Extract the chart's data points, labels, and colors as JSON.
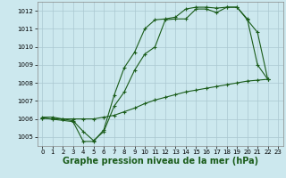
{
  "bg_color": "#cce8ee",
  "grid_color": "#aac8d0",
  "line_color": "#1a5c1a",
  "xlabel": "Graphe pression niveau de la mer (hPa)",
  "xlabel_fontsize": 7.0,
  "xlim": [
    -0.5,
    23.5
  ],
  "ylim": [
    1004.5,
    1012.5
  ],
  "yticks": [
    1005,
    1006,
    1007,
    1008,
    1009,
    1010,
    1011,
    1012
  ],
  "xticks": [
    0,
    1,
    2,
    3,
    4,
    5,
    6,
    7,
    8,
    9,
    10,
    11,
    12,
    13,
    14,
    15,
    16,
    17,
    18,
    19,
    20,
    21,
    22,
    23
  ],
  "line1_x": [
    0,
    1,
    2,
    3,
    4,
    5,
    6,
    7,
    8,
    9,
    10,
    11,
    12,
    13,
    14,
    15,
    16,
    17,
    18,
    19,
    20,
    21,
    22
  ],
  "line1_y": [
    1006.1,
    1006.1,
    1006.0,
    1005.9,
    1005.3,
    1004.8,
    1005.3,
    1006.7,
    1007.5,
    1008.7,
    1009.6,
    1010.0,
    1011.5,
    1011.55,
    1011.55,
    1012.1,
    1012.1,
    1011.9,
    1012.2,
    1012.2,
    1011.5,
    1010.8,
    1008.2
  ],
  "line2_x": [
    0,
    1,
    2,
    3,
    4,
    5,
    6,
    7,
    8,
    9,
    10,
    11,
    12,
    13,
    14,
    15,
    16,
    17,
    18,
    19,
    20,
    21,
    22
  ],
  "line2_y": [
    1006.05,
    1006.0,
    1006.0,
    1006.0,
    1006.0,
    1006.0,
    1006.1,
    1006.2,
    1006.4,
    1006.6,
    1006.85,
    1007.05,
    1007.2,
    1007.35,
    1007.5,
    1007.6,
    1007.7,
    1007.8,
    1007.9,
    1008.0,
    1008.1,
    1008.15,
    1008.2
  ],
  "line3_x": [
    0,
    3,
    4,
    5,
    6,
    7,
    8,
    9,
    10,
    11,
    12,
    13,
    14,
    15,
    16,
    17,
    18,
    19,
    20,
    21,
    22
  ],
  "line3_y": [
    1006.05,
    1005.85,
    1004.75,
    1004.75,
    1005.4,
    1007.3,
    1008.85,
    1009.7,
    1011.0,
    1011.5,
    1011.55,
    1011.65,
    1012.1,
    1012.2,
    1012.2,
    1012.15,
    1012.2,
    1012.2,
    1011.55,
    1009.0,
    1008.2
  ]
}
